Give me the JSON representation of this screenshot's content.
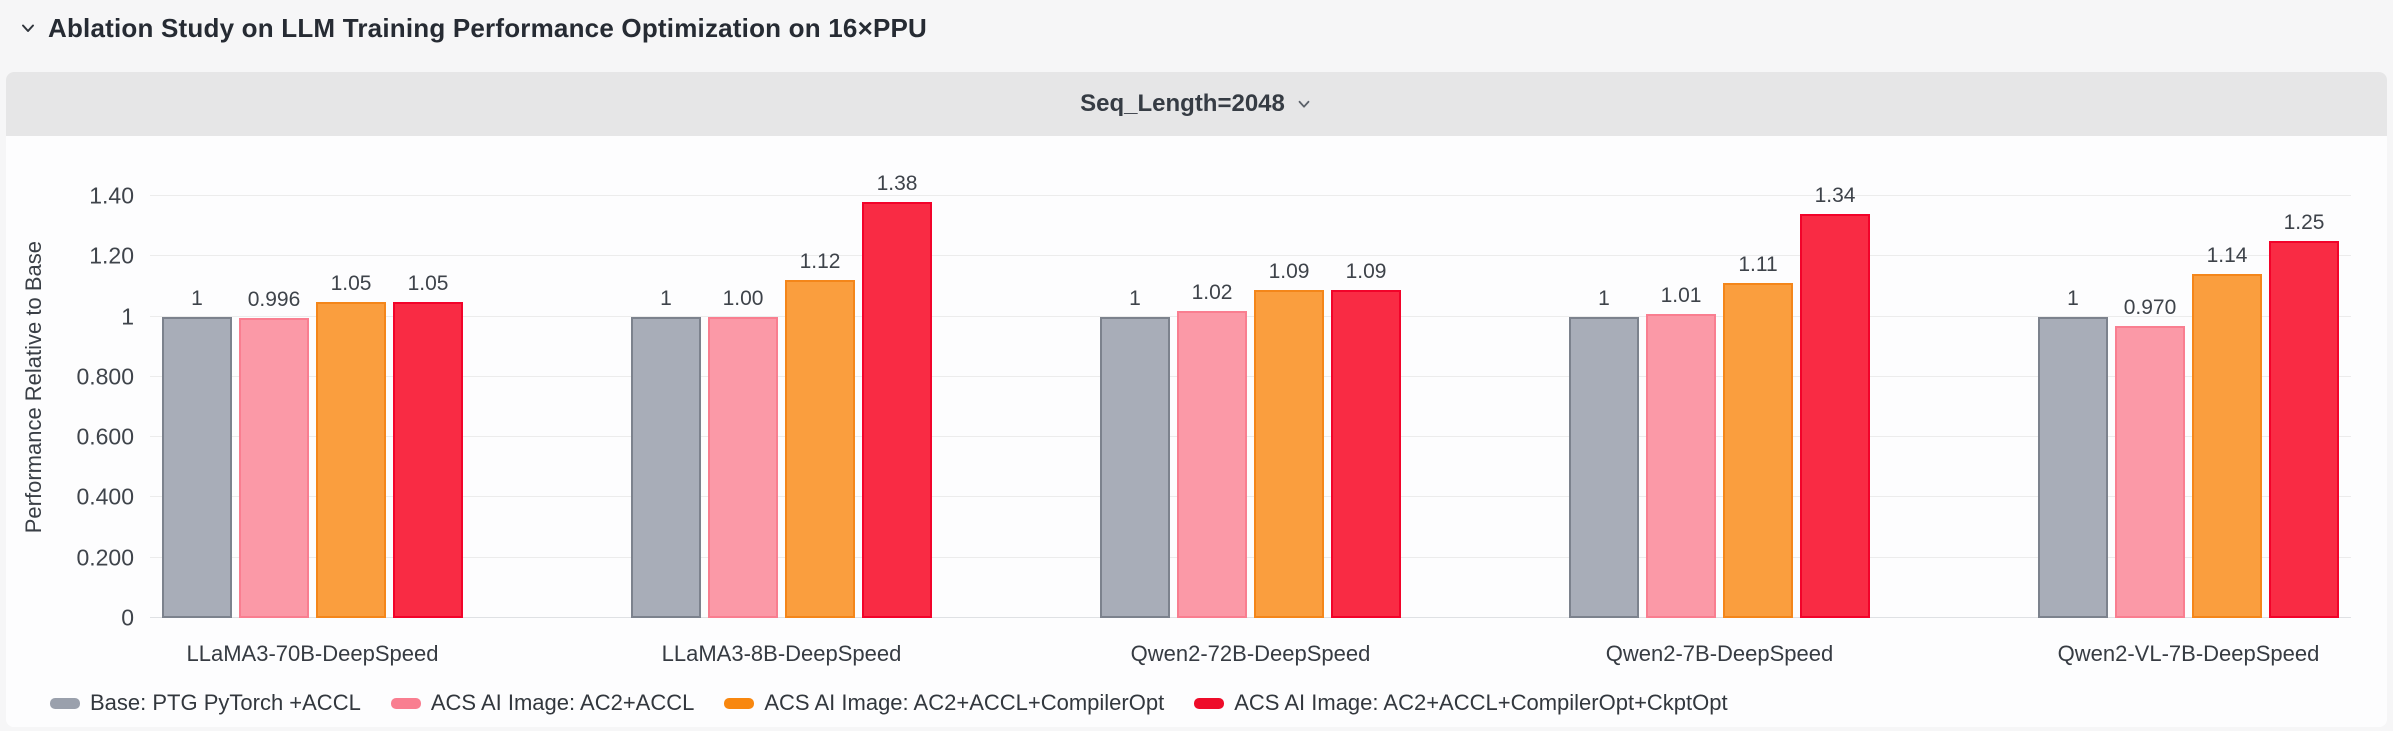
{
  "header": {
    "title": "Ablation Study on LLM Training Performance Optimization on 16×PPU"
  },
  "panel": {
    "dropdown_label": "Seq_Length=2048"
  },
  "chart_data": {
    "type": "bar",
    "title": "Seq_Length=2048",
    "xlabel": "",
    "ylabel": "Performance Relative to Base",
    "ylim": [
      0,
      1.533
    ],
    "grid": true,
    "legend_position": "bottom-left",
    "yticks": [
      {
        "value": 0,
        "label": "0"
      },
      {
        "value": 0.2,
        "label": "0.200"
      },
      {
        "value": 0.4,
        "label": "0.400"
      },
      {
        "value": 0.6,
        "label": "0.600"
      },
      {
        "value": 0.8,
        "label": "0.800"
      },
      {
        "value": 1,
        "label": "1"
      },
      {
        "value": 1.2,
        "label": "1.20"
      },
      {
        "value": 1.4,
        "label": "1.40"
      }
    ],
    "categories": [
      "LLaMA3-70B-DeepSpeed",
      "LLaMA3-8B-DeepSpeed",
      "Qwen2-72B-DeepSpeed",
      "Qwen2-7B-DeepSpeed",
      "Qwen2-VL-7B-DeepSpeed"
    ],
    "series": [
      {
        "name": "Base: PTG PyTorch +ACCL",
        "fill": "#a8adb8",
        "stroke": "#7c828d",
        "legend_color": "#9aa0ac",
        "values": [
          1,
          1,
          1,
          1,
          1
        ],
        "labels": [
          "1",
          "1",
          "1",
          "1",
          "1"
        ]
      },
      {
        "name": "ACS AI Image: AC2+ACCL",
        "fill": "#fb99a7",
        "stroke": "#f97e90",
        "legend_color": "#f97e90",
        "values": [
          0.996,
          1.0,
          1.02,
          1.01,
          0.97
        ],
        "labels": [
          "0.996",
          "1.00",
          "1.02",
          "1.01",
          "0.970"
        ]
      },
      {
        "name": "ACS AI Image: AC2+ACCL+CompilerOpt",
        "fill": "#fa9e3e",
        "stroke": "#f4861a",
        "legend_color": "#f8870f",
        "values": [
          1.05,
          1.12,
          1.09,
          1.11,
          1.14
        ],
        "labels": [
          "1.05",
          "1.12",
          "1.09",
          "1.11",
          "1.14"
        ]
      },
      {
        "name": "ACS AI Image: AC2+ACCL+CompilerOpt+CkptOpt",
        "fill": "#f92b44",
        "stroke": "#f2032a",
        "legend_color": "#ee0c29",
        "values": [
          1.05,
          1.38,
          1.09,
          1.34,
          1.25
        ],
        "labels": [
          "1.05",
          "1.38",
          "1.09",
          "1.34",
          "1.25"
        ]
      }
    ]
  }
}
